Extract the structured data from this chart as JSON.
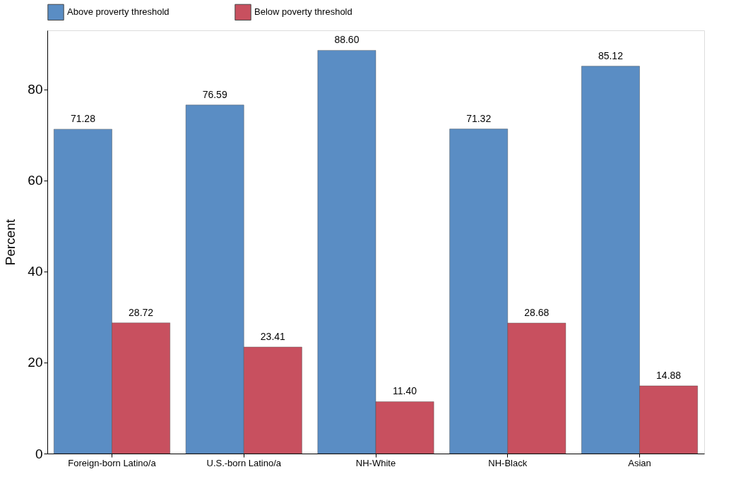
{
  "chart_data": {
    "type": "bar",
    "ylabel": "Percent",
    "categories": [
      "Foreign-born Latino/a",
      "U.S.-born Latino/a",
      "NH-White",
      "NH-Black",
      "Asian"
    ],
    "series": [
      {
        "name": "Above proverty threshold",
        "color": "#5a8dc4",
        "values": [
          71.28,
          76.59,
          88.6,
          71.32,
          85.12
        ]
      },
      {
        "name": "Below poverty threshold",
        "color": "#c8505f",
        "values": [
          28.72,
          23.41,
          11.4,
          28.68,
          14.88
        ]
      }
    ],
    "value_labels": [
      [
        "71.28",
        "76.59",
        "88.60",
        "71.32",
        "85.12"
      ],
      [
        "28.72",
        "23.41",
        "11.40",
        "28.68",
        "14.88"
      ]
    ],
    "ylim": [
      0,
      93
    ],
    "yticks": [
      0,
      20,
      40,
      60,
      80
    ],
    "grid": false,
    "legend": "top left"
  }
}
